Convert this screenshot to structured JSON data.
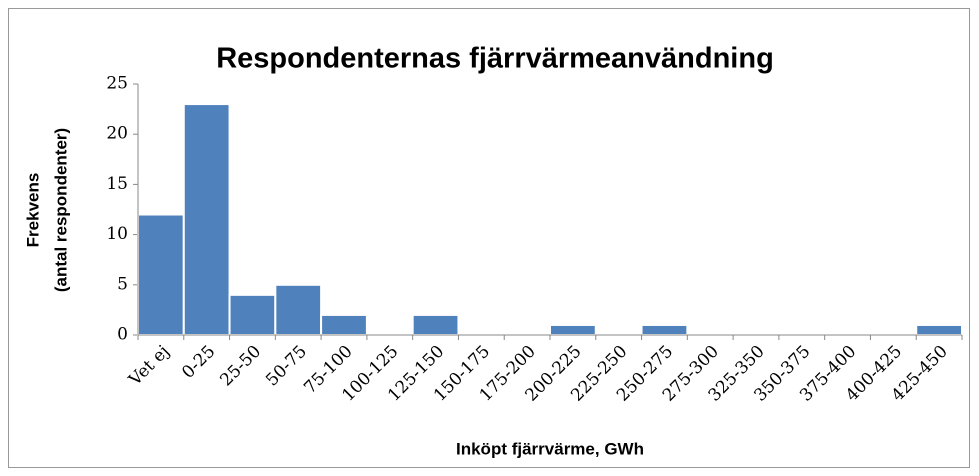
{
  "chart_data": {
    "type": "bar",
    "title": "Respondenternas fjärrvärmeanvändning",
    "x_label": "Inköpt fjärrvärme, GWh",
    "y_label": [
      "Frekvens",
      "(antal respondenter)"
    ],
    "categories": [
      "Vet ej",
      "0-25",
      "25-50",
      "50-75",
      "75-100",
      "100-125",
      "125-150",
      "150-175",
      "175-200",
      "200-225",
      "225-250",
      "250-275",
      "275-300",
      "325-350",
      "350-375",
      "375-400",
      "400-425",
      "425-450"
    ],
    "values": [
      12,
      23,
      4,
      5,
      2,
      0,
      2,
      0,
      0,
      1,
      0,
      1,
      0,
      0,
      0,
      0,
      0,
      1
    ],
    "color": "#4f81bd",
    "ylim": [
      0,
      25
    ],
    "yticks": [
      0,
      5,
      10,
      15,
      20,
      25
    ],
    "grid": false
  }
}
